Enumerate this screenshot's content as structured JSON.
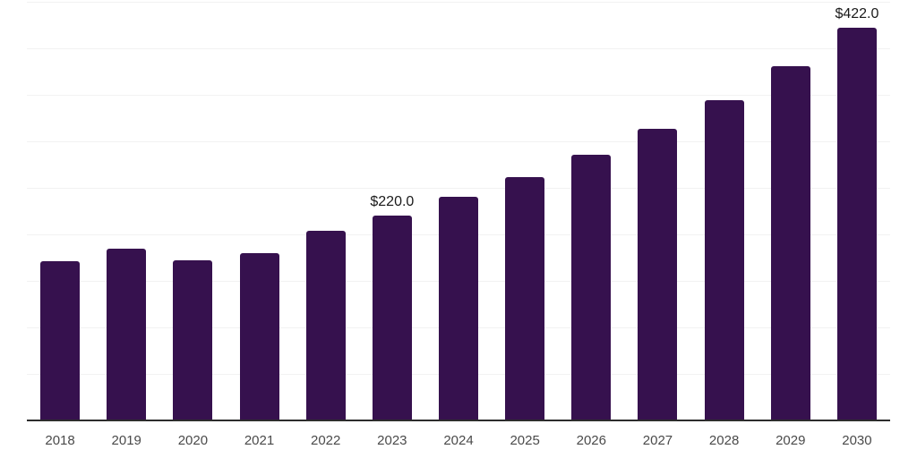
{
  "chart_data": {
    "type": "bar",
    "categories": [
      "2018",
      "2019",
      "2020",
      "2021",
      "2022",
      "2023",
      "2024",
      "2025",
      "2026",
      "2027",
      "2028",
      "2029",
      "2030"
    ],
    "values": [
      171.5,
      184.2,
      172.4,
      180.2,
      204.0,
      220.0,
      240.4,
      261.3,
      285.3,
      313.2,
      344.5,
      380.8,
      422.0
    ],
    "series_name": "market-size",
    "title": "",
    "xlabel": "",
    "ylabel": "",
    "ylim": [
      0,
      450
    ],
    "gridline_interval": 50,
    "grid": "horizontal-only",
    "legend_position": "none",
    "value_labels": {
      "2023": "$220.0",
      "2030": "$422.0"
    },
    "bar_color": "#36114E",
    "gridline_color": "#f2f2f2",
    "axis_line_color": "#2d2d2d",
    "value_label_color": "#1a1a1a",
    "tick_label_color": "#4a4a4a"
  }
}
